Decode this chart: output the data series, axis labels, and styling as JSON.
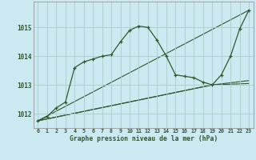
{
  "background_color": "#cce8f0",
  "grid_color": "#aacccc",
  "line_color": "#2d5a2d",
  "title": "Graphe pression niveau de la mer (hPa)",
  "ylabel_ticks": [
    1012,
    1013,
    1014,
    1015
  ],
  "xlim": [
    -0.5,
    23.5
  ],
  "ylim": [
    1011.5,
    1015.9
  ],
  "series": [
    {
      "x": [
        0,
        1,
        2,
        3,
        4,
        5,
        6,
        7,
        8,
        9,
        10,
        11,
        12,
        13,
        14,
        15,
        16,
        17,
        18,
        19,
        20,
        21,
        22,
        23
      ],
      "y": [
        1011.75,
        1011.9,
        1012.2,
        1012.4,
        1013.6,
        1013.8,
        1013.9,
        1014.0,
        1014.05,
        1014.5,
        1014.9,
        1015.05,
        1015.0,
        1014.55,
        1014.0,
        1013.35,
        1013.3,
        1013.25,
        1013.1,
        1013.0,
        1013.35,
        1014.0,
        1014.95,
        1015.6
      ],
      "marker": "+"
    },
    {
      "x": [
        0,
        23
      ],
      "y": [
        1011.75,
        1015.6
      ],
      "marker": null
    },
    {
      "x": [
        0,
        19,
        23
      ],
      "y": [
        1011.75,
        1013.0,
        1013.05
      ],
      "marker": null
    },
    {
      "x": [
        0,
        19,
        23
      ],
      "y": [
        1011.75,
        1013.0,
        1013.15
      ],
      "marker": null
    }
  ]
}
